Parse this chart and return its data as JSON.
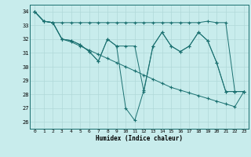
{
  "xlabel": "Humidex (Indice chaleur)",
  "bg_color": "#c8ecec",
  "grid_color": "#b0d8d8",
  "line_color": "#1a7070",
  "xlim": [
    -0.5,
    23.5
  ],
  "ylim": [
    25.5,
    34.5
  ],
  "xticks": [
    0,
    1,
    2,
    3,
    4,
    5,
    6,
    7,
    8,
    9,
    10,
    11,
    12,
    13,
    14,
    15,
    16,
    17,
    18,
    19,
    20,
    21,
    22,
    23
  ],
  "yticks": [
    26,
    27,
    28,
    29,
    30,
    31,
    32,
    33,
    34
  ],
  "line1": [
    34.0,
    33.3,
    33.2,
    33.2,
    33.2,
    33.2,
    33.2,
    33.2,
    33.2,
    33.2,
    33.2,
    33.2,
    33.2,
    33.2,
    33.2,
    33.2,
    33.2,
    33.2,
    33.2,
    33.3,
    33.2,
    33.2,
    28.2,
    28.2
  ],
  "line2": [
    34.0,
    33.3,
    33.2,
    32.0,
    31.8,
    31.5,
    31.2,
    30.9,
    30.6,
    30.3,
    30.0,
    29.7,
    29.4,
    29.1,
    28.8,
    28.5,
    28.3,
    28.1,
    27.9,
    27.7,
    27.5,
    27.3,
    27.1,
    28.2
  ],
  "line3": [
    34.0,
    33.3,
    33.2,
    32.0,
    31.9,
    31.6,
    31.1,
    30.4,
    32.0,
    31.5,
    31.5,
    31.5,
    28.2,
    31.5,
    32.5,
    31.5,
    31.1,
    31.5,
    32.5,
    31.9,
    30.3,
    28.2,
    28.2,
    28.2
  ],
  "line4": [
    34.0,
    33.3,
    33.2,
    32.0,
    31.9,
    31.6,
    31.1,
    30.4,
    32.0,
    31.5,
    27.0,
    26.1,
    28.3,
    31.5,
    32.5,
    31.5,
    31.1,
    31.5,
    32.5,
    31.9,
    30.3,
    28.2,
    28.2,
    28.2
  ]
}
